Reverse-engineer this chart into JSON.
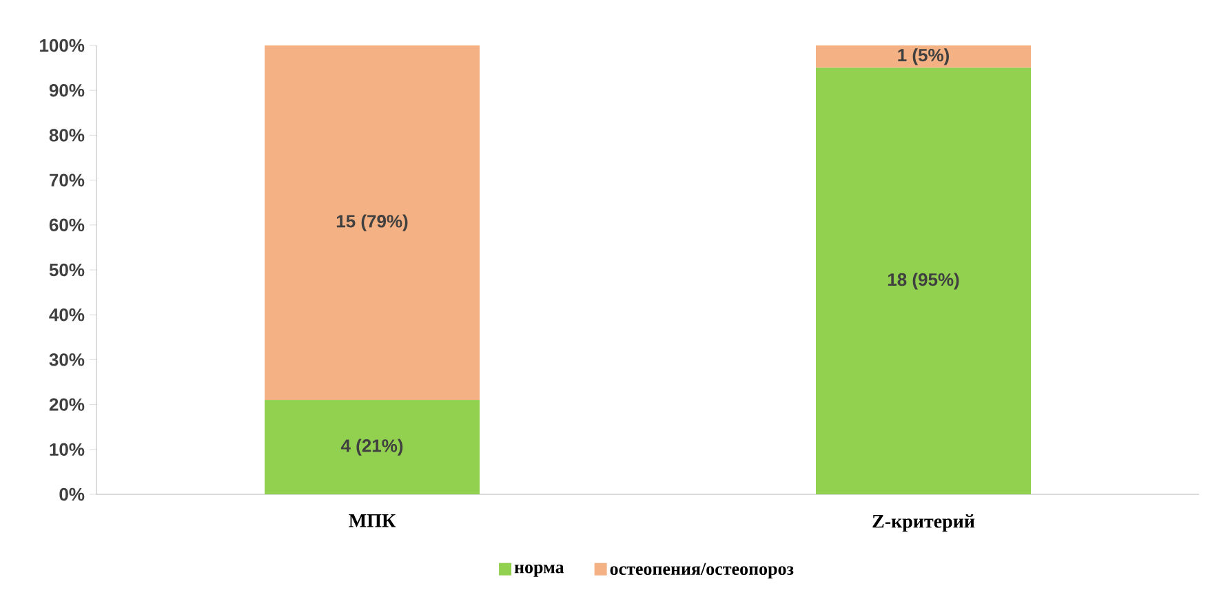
{
  "chart_data": {
    "type": "bar",
    "stacked": true,
    "categories": [
      "МПК",
      "Z-критерий"
    ],
    "series": [
      {
        "name": "норма",
        "color": "#92d050",
        "values": [
          21,
          95
        ],
        "value_labels": [
          "4 (21%)",
          "18 (95%)"
        ]
      },
      {
        "name": "остеопения/остеопороз",
        "color": "#f4b183",
        "values": [
          79,
          5
        ],
        "value_labels": [
          "15 (79%)",
          "1 (5%)"
        ]
      }
    ],
    "ylim": [
      0,
      100
    ],
    "yticks": [
      {
        "value": 0,
        "label": "0%"
      },
      {
        "value": 10,
        "label": "10%"
      },
      {
        "value": 20,
        "label": "20%"
      },
      {
        "value": 30,
        "label": "30%"
      },
      {
        "value": 40,
        "label": "40%"
      },
      {
        "value": 50,
        "label": "50%"
      },
      {
        "value": 60,
        "label": "60%"
      },
      {
        "value": 70,
        "label": "70%"
      },
      {
        "value": 80,
        "label": "80%"
      },
      {
        "value": 90,
        "label": "90%"
      },
      {
        "value": 100,
        "label": "100%"
      }
    ],
    "grid": false,
    "legend": "bottom"
  }
}
